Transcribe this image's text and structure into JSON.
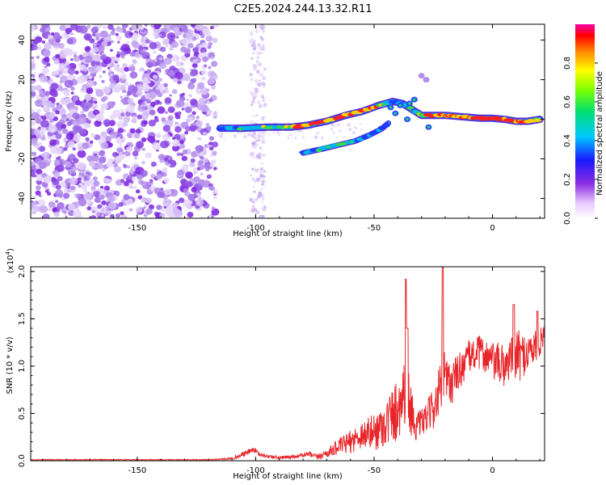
{
  "title": "C2E5.2024.244.13.32.R11",
  "chart_data": [
    {
      "type": "heatmap",
      "name": "spectrogram",
      "xlabel": "Height of straight line (km)",
      "ylabel": "Frequency (Hz)",
      "xlim": [
        -195,
        22
      ],
      "ylim": [
        -50,
        48
      ],
      "xticks": [
        -150,
        -100,
        -50,
        0
      ],
      "yticks": [
        -40,
        -20,
        0,
        20,
        40
      ],
      "colorbar": {
        "label": "Normalized spectral amplitude",
        "range": [
          0,
          1
        ],
        "ticks": [
          0.0,
          0.2,
          0.4,
          0.6,
          0.8
        ],
        "tick_labels": [
          "0.0",
          "0.2",
          "0.4",
          "0.6",
          "0.8"
        ]
      },
      "colors": {
        "noise_dark": "#7b22e0",
        "noise_light": "#d9c4f5",
        "track_core": "#ff2b2b",
        "track_mid": "#2fd15a",
        "track_edge": "#1f3cff"
      },
      "noise_region_km": [
        -195,
        -117
      ],
      "tracks": [
        {
          "name": "main-track",
          "x": [
            -115,
            -105,
            -95,
            -85,
            -78,
            -70,
            -62,
            -55,
            -48,
            -45,
            -42,
            -38,
            -34,
            -30,
            -25,
            -20,
            -15,
            -10,
            -5,
            0,
            5,
            10,
            15,
            20
          ],
          "y": [
            -4.5,
            -4.5,
            -4,
            -4,
            -3,
            -1,
            2,
            4,
            7,
            8,
            9,
            8,
            5,
            2,
            2,
            2,
            1.5,
            1,
            0.5,
            0.5,
            0,
            -1,
            -1,
            0
          ],
          "amplitude": [
            0.6,
            0.65,
            0.7,
            0.8,
            0.85,
            0.9,
            0.9,
            0.85,
            0.75,
            0.7,
            0.5,
            0.55,
            0.6,
            0.7,
            0.9,
            0.85,
            0.85,
            0.9,
            0.95,
            0.95,
            0.9,
            0.9,
            0.85,
            0.7
          ]
        },
        {
          "name": "lower-branch",
          "x": [
            -80,
            -72,
            -65,
            -58,
            -52,
            -47,
            -44
          ],
          "y": [
            -17,
            -15,
            -13,
            -11,
            -8,
            -5,
            -2
          ],
          "amplitude": [
            0.5,
            0.65,
            0.7,
            0.6,
            0.55,
            0.5,
            0.45
          ]
        }
      ]
    },
    {
      "type": "line",
      "name": "snr",
      "xlabel": "Height of straight line (km)",
      "ylabel": "SNR (10 * v/v)",
      "multiplier_label": "(x10",
      "multiplier_exp": "4",
      "multiplier_close": ")",
      "xlim": [
        -195,
        22
      ],
      "ylim": [
        0,
        2.05
      ],
      "xticks": [
        -150,
        -100,
        -50,
        0
      ],
      "yticks": [
        0.0,
        0.5,
        1.0,
        1.5,
        2.0
      ],
      "ytick_labels": [
        "0.0",
        "0.5",
        "1.0",
        "1.5",
        "2.0"
      ],
      "color": "#e8262a",
      "envelope": {
        "x": [
          -195,
          -120,
          -112,
          -108,
          -104,
          -101,
          -98,
          -90,
          -82,
          -78,
          -74,
          -70,
          -65,
          -60,
          -55,
          -50,
          -45,
          -40,
          -38,
          -36,
          -35,
          -34,
          -32,
          -28,
          -24,
          -22,
          -21,
          -20,
          -18,
          -14,
          -10,
          -5,
          0,
          5,
          8,
          10,
          12,
          15,
          18,
          20,
          22
        ],
        "base": [
          0.01,
          0.01,
          0.02,
          0.04,
          0.08,
          0.12,
          0.06,
          0.03,
          0.05,
          0.07,
          0.04,
          0.08,
          0.15,
          0.2,
          0.28,
          0.3,
          0.4,
          0.55,
          0.7,
          0.8,
          0.6,
          0.5,
          0.35,
          0.45,
          0.6,
          0.75,
          0.9,
          0.85,
          0.8,
          0.95,
          1.1,
          1.15,
          1.05,
          1.0,
          1.1,
          1.12,
          1.1,
          1.15,
          1.2,
          1.25,
          1.35
        ],
        "noise": [
          0.005,
          0.005,
          0.01,
          0.02,
          0.03,
          0.03,
          0.02,
          0.02,
          0.02,
          0.03,
          0.03,
          0.05,
          0.08,
          0.12,
          0.15,
          0.2,
          0.25,
          0.35,
          0.35,
          0.4,
          0.3,
          0.25,
          0.15,
          0.15,
          0.25,
          0.3,
          0.35,
          0.3,
          0.25,
          0.2,
          0.18,
          0.18,
          0.2,
          0.25,
          0.2,
          0.3,
          0.25,
          0.2,
          0.2,
          0.15,
          0.1
        ]
      },
      "peaks": [
        {
          "x": -36.5,
          "y": 1.92
        },
        {
          "x": -21,
          "y": 2.05
        },
        {
          "x": -36,
          "y": 1.4
        },
        {
          "x": 9,
          "y": 1.65
        },
        {
          "x": 19,
          "y": 1.58
        }
      ]
    }
  ]
}
